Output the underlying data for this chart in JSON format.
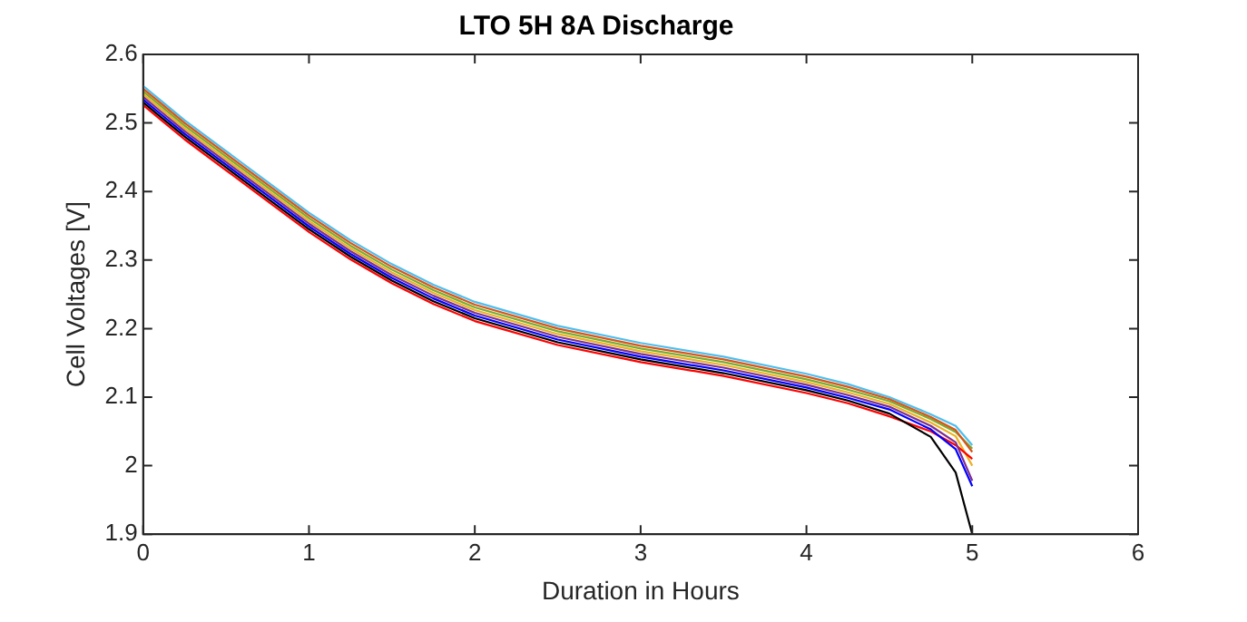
{
  "chart_data": {
    "type": "line",
    "title": "LTO 5H 8A Discharge",
    "xlabel": "Duration in Hours",
    "ylabel": "Cell Voltages [V]",
    "x": [
      0,
      0.1,
      0.25,
      0.5,
      0.75,
      1,
      1.25,
      1.5,
      1.75,
      2,
      2.5,
      3,
      3.5,
      4,
      4.25,
      4.5,
      4.75,
      4.9,
      5
    ],
    "xlim": [
      0,
      6
    ],
    "xticks": [
      0,
      1,
      2,
      3,
      4,
      5,
      6
    ],
    "ylim": [
      1.9,
      2.6
    ],
    "yticks": [
      1.9,
      2,
      2.1,
      2.2,
      2.3,
      2.4,
      2.5,
      2.6
    ],
    "marker": "none",
    "line_style": "solid",
    "legend": false,
    "series": [
      {
        "color": "#000000",
        "values": [
          2.53,
          2.51,
          2.48,
          2.435,
          2.39,
          2.345,
          2.305,
          2.27,
          2.24,
          2.215,
          2.18,
          2.155,
          2.135,
          2.11,
          2.095,
          2.076,
          2.042,
          1.99,
          1.9
        ]
      },
      {
        "color": "#0000ff",
        "values": [
          2.534,
          2.514,
          2.484,
          2.439,
          2.394,
          2.349,
          2.309,
          2.274,
          2.244,
          2.219,
          2.184,
          2.159,
          2.139,
          2.114,
          2.099,
          2.082,
          2.053,
          2.024,
          1.97
        ]
      },
      {
        "color": "#7e2f8e",
        "values": [
          2.538,
          2.518,
          2.488,
          2.443,
          2.398,
          2.353,
          2.313,
          2.278,
          2.248,
          2.223,
          2.188,
          2.163,
          2.143,
          2.118,
          2.103,
          2.086,
          2.058,
          2.034,
          1.978
        ]
      },
      {
        "color": "#ff0000",
        "values": [
          2.526,
          2.506,
          2.476,
          2.431,
          2.386,
          2.341,
          2.301,
          2.266,
          2.236,
          2.211,
          2.176,
          2.151,
          2.131,
          2.106,
          2.091,
          2.072,
          2.05,
          2.03,
          2.01
        ]
      },
      {
        "color": "#edb120",
        "values": [
          2.542,
          2.522,
          2.492,
          2.447,
          2.402,
          2.357,
          2.317,
          2.282,
          2.252,
          2.227,
          2.192,
          2.167,
          2.147,
          2.122,
          2.107,
          2.09,
          2.063,
          2.043,
          2
        ]
      },
      {
        "color": "#d95319",
        "values": [
          2.55,
          2.53,
          2.5,
          2.455,
          2.41,
          2.365,
          2.325,
          2.29,
          2.26,
          2.235,
          2.2,
          2.175,
          2.155,
          2.13,
          2.115,
          2.097,
          2.071,
          2.052,
          2.02
        ]
      },
      {
        "color": "#77ac30",
        "values": [
          2.546,
          2.526,
          2.496,
          2.451,
          2.406,
          2.361,
          2.321,
          2.286,
          2.256,
          2.231,
          2.196,
          2.171,
          2.151,
          2.126,
          2.111,
          2.094,
          2.068,
          2.049,
          2.025
        ]
      },
      {
        "color": "#4dbeee",
        "values": [
          2.554,
          2.534,
          2.504,
          2.459,
          2.414,
          2.369,
          2.329,
          2.294,
          2.264,
          2.239,
          2.204,
          2.179,
          2.159,
          2.134,
          2.119,
          2.1,
          2.075,
          2.058,
          2.03
        ]
      }
    ]
  }
}
